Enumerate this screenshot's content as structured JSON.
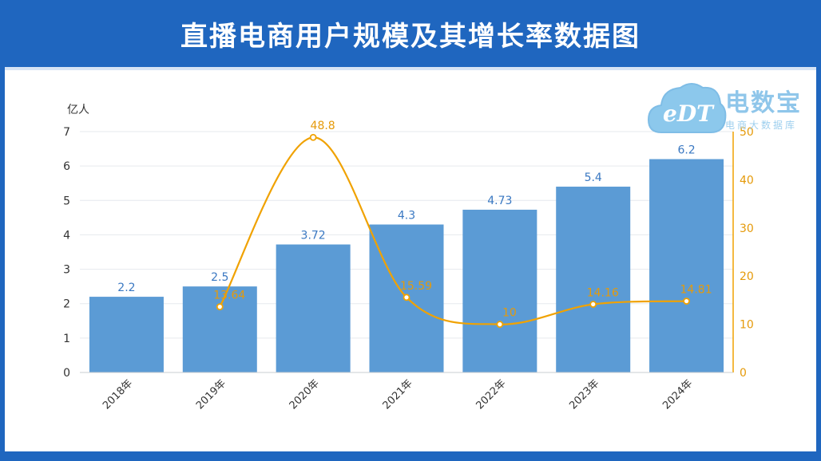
{
  "title": "直播电商用户规模及其增长率数据图",
  "logo": {
    "mark": "eDT",
    "name": "电数宝",
    "sub": "电商大数据库"
  },
  "colors": {
    "banner": "#1f66bf",
    "bar": "#5b9bd5",
    "line": "#f0a202",
    "bar_label": "#3a78c2",
    "line_label": "#e59a0a"
  },
  "chart_data": {
    "type": "bar",
    "categories": [
      "2018年",
      "2019年",
      "2020年",
      "2021年",
      "2022年",
      "2023年",
      "2024年"
    ],
    "series": [
      {
        "type": "bar",
        "axis": "left",
        "values": [
          2.2,
          2.5,
          3.72,
          4.3,
          4.73,
          5.4,
          6.2
        ],
        "labels": [
          "2.2",
          "2.5",
          "3.72",
          "4.3",
          "4.73",
          "5.4",
          "6.2"
        ]
      },
      {
        "type": "line",
        "axis": "right",
        "values": [
          null,
          13.64,
          48.8,
          15.59,
          10,
          14.16,
          14.81
        ],
        "labels": [
          "",
          "13.64",
          "48.8",
          "15.59",
          "10",
          "14.16",
          "14.81"
        ]
      }
    ],
    "y_left": {
      "label": "亿人",
      "min": 0,
      "max": 7,
      "ticks": [
        "0",
        "1",
        "2",
        "3",
        "4",
        "5",
        "6",
        "7"
      ]
    },
    "y_right": {
      "min": 0,
      "max": 50,
      "ticks": [
        "0",
        "10",
        "20",
        "30",
        "40",
        "50"
      ]
    },
    "grid": true,
    "legend": "none"
  }
}
